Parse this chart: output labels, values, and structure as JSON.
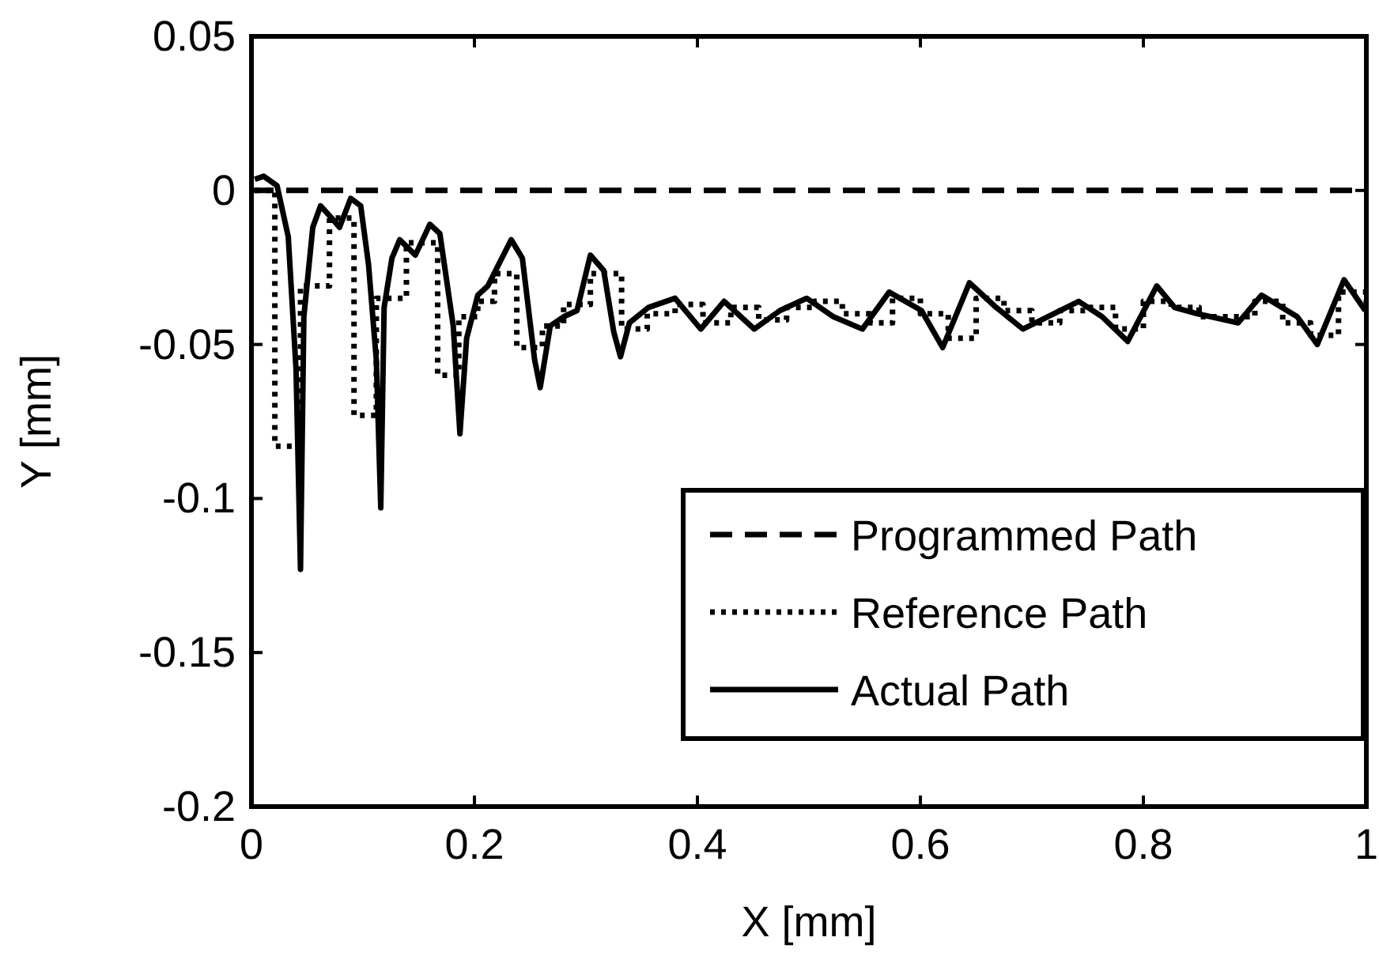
{
  "chart_data": {
    "type": "line",
    "xlabel": "X [mm]",
    "ylabel": "Y [mm]",
    "xlim": [
      0,
      1
    ],
    "ylim": [
      -0.2,
      0.05
    ],
    "xticks": [
      0,
      0.2,
      0.4,
      0.6,
      0.8,
      1
    ],
    "yticks": [
      -0.2,
      -0.15,
      -0.1,
      -0.05,
      0,
      0.05
    ],
    "grid": false,
    "legend": "bottom right",
    "marker": "none",
    "series": [
      {
        "name": "Programmed Path",
        "color": "#000000",
        "line_style": "dashed",
        "x": [
          0,
          1
        ],
        "values": [
          0,
          0
        ]
      },
      {
        "name": "Reference Path",
        "color": "#000000",
        "type": "step",
        "line_style": "dotted",
        "x": [
          0.003,
          0.021,
          0.044,
          0.07,
          0.092,
          0.112,
          0.139,
          0.167,
          0.186,
          0.203,
          0.218,
          0.238,
          0.261,
          0.28,
          0.304,
          0.332,
          0.355,
          0.38,
          0.405,
          0.43,
          0.455,
          0.48,
          0.505,
          0.53,
          0.555,
          0.575,
          0.6,
          0.625,
          0.65,
          0.675,
          0.7,
          0.725,
          0.75,
          0.775,
          0.8,
          0.825,
          0.85,
          0.875,
          0.9,
          0.925,
          0.95,
          0.975,
          1.0
        ],
        "values": [
          0,
          -0.083,
          -0.031,
          -0.009,
          -0.073,
          -0.035,
          -0.017,
          -0.06,
          -0.041,
          -0.036,
          -0.027,
          -0.051,
          -0.044,
          -0.037,
          -0.027,
          -0.045,
          -0.04,
          -0.037,
          -0.043,
          -0.038,
          -0.042,
          -0.038,
          -0.036,
          -0.04,
          -0.043,
          -0.035,
          -0.04,
          -0.048,
          -0.035,
          -0.039,
          -0.043,
          -0.039,
          -0.038,
          -0.045,
          -0.036,
          -0.038,
          -0.041,
          -0.041,
          -0.036,
          -0.043,
          -0.047,
          -0.033,
          -0.038
        ]
      },
      {
        "name": "Actual Path",
        "color": "#000000",
        "line_style": "solid",
        "x": [
          0.003,
          0.011,
          0.023,
          0.033,
          0.04,
          0.044,
          0.047,
          0.055,
          0.062,
          0.072,
          0.079,
          0.089,
          0.098,
          0.105,
          0.112,
          0.116,
          0.119,
          0.126,
          0.133,
          0.147,
          0.16,
          0.169,
          0.181,
          0.187,
          0.193,
          0.203,
          0.212,
          0.219,
          0.233,
          0.243,
          0.254,
          0.259,
          0.268,
          0.28,
          0.292,
          0.304,
          0.316,
          0.325,
          0.331,
          0.339,
          0.356,
          0.38,
          0.403,
          0.424,
          0.451,
          0.474,
          0.498,
          0.522,
          0.548,
          0.572,
          0.601,
          0.62,
          0.644,
          0.668,
          0.692,
          0.742,
          0.763,
          0.786,
          0.812,
          0.828,
          0.848,
          0.885,
          0.906,
          0.938,
          0.956,
          0.98,
          0.999
        ],
        "values": [
          0.0036,
          0.0046,
          0.0015,
          -0.015,
          -0.058,
          -0.123,
          -0.041,
          -0.012,
          -0.005,
          -0.009,
          -0.012,
          -0.0026,
          -0.005,
          -0.024,
          -0.055,
          -0.103,
          -0.038,
          -0.022,
          -0.016,
          -0.021,
          -0.011,
          -0.014,
          -0.044,
          -0.079,
          -0.048,
          -0.034,
          -0.031,
          -0.026,
          -0.016,
          -0.022,
          -0.055,
          -0.064,
          -0.044,
          -0.041,
          -0.039,
          -0.021,
          -0.026,
          -0.046,
          -0.054,
          -0.043,
          -0.038,
          -0.035,
          -0.045,
          -0.036,
          -0.045,
          -0.039,
          -0.035,
          -0.041,
          -0.045,
          -0.033,
          -0.039,
          -0.051,
          -0.03,
          -0.038,
          -0.045,
          -0.036,
          -0.041,
          -0.049,
          -0.031,
          -0.038,
          -0.04,
          -0.043,
          -0.034,
          -0.041,
          -0.05,
          -0.029,
          -0.039
        ]
      }
    ]
  }
}
